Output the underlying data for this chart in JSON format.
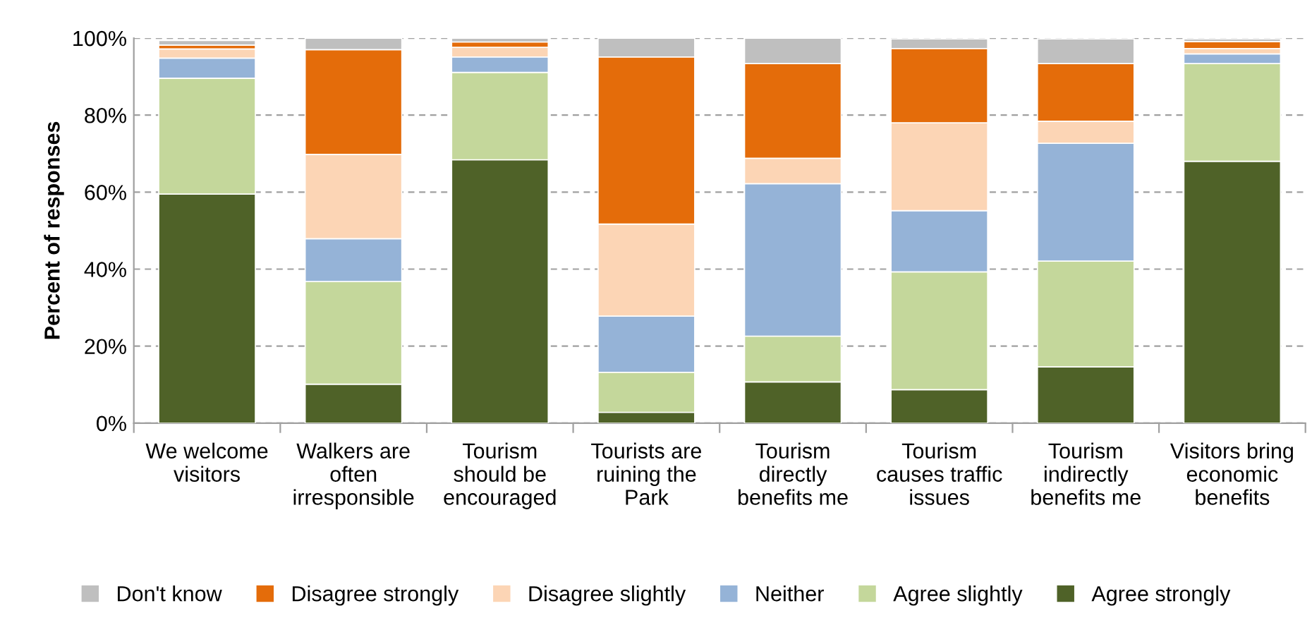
{
  "chart_data": {
    "type": "bar",
    "stacked": true,
    "ylabel": "Percent of responses",
    "categories": [
      "We welcome\nvisitors",
      "Walkers are\noften\nirresponsible",
      "Tourism\nshould be\nencouraged",
      "Tourists are\nruining the\nPark",
      "Tourism\ndirectly\nbenefits me",
      "Tourism\ncauses traffic\nissues",
      "Tourism\nindirectly\nbenefits me",
      "Visitors bring\neconomic\nbenefits"
    ],
    "series": [
      {
        "name": "Agree strongly",
        "color": "#4f6228",
        "values": [
          59.5,
          10.1,
          68.4,
          2.8,
          10.7,
          8.7,
          14.6,
          68.0
        ]
      },
      {
        "name": "Agree slightly",
        "color": "#c4d79b",
        "values": [
          30.1,
          26.7,
          22.7,
          10.4,
          11.9,
          30.6,
          27.5,
          25.4
        ]
      },
      {
        "name": "Neither",
        "color": "#95b3d7",
        "values": [
          5.2,
          11.1,
          4.0,
          14.6,
          39.6,
          15.9,
          30.6,
          2.5
        ]
      },
      {
        "name": "Disagree slightly",
        "color": "#fcd5b5",
        "values": [
          2.4,
          21.9,
          2.5,
          23.9,
          6.6,
          22.8,
          5.7,
          1.4
        ]
      },
      {
        "name": "Disagree strongly",
        "color": "#e46c0a",
        "values": [
          1.0,
          27.2,
          1.4,
          43.4,
          24.6,
          19.3,
          15.0,
          1.8
        ]
      },
      {
        "name": "Don't know",
        "color": "#bfbfbf",
        "values": [
          1.2,
          3.0,
          1.0,
          4.9,
          6.6,
          2.5,
          6.4,
          0.7
        ]
      }
    ],
    "ylim": [
      0,
      100
    ],
    "yticks": [
      {
        "value": 0,
        "label": "0%"
      },
      {
        "value": 20,
        "label": "20%"
      },
      {
        "value": 40,
        "label": "40%"
      },
      {
        "value": 60,
        "label": "60%"
      },
      {
        "value": 80,
        "label": "80%"
      },
      {
        "value": 100,
        "label": "100%"
      }
    ],
    "grid": "y",
    "legend": "bottom"
  }
}
